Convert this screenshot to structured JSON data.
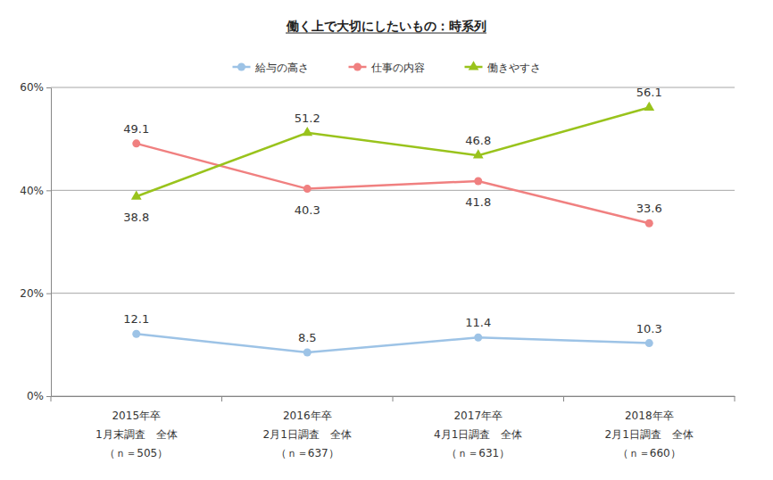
{
  "chart_data": {
    "type": "line",
    "title": "働く上で大切にしたいもの：時系列",
    "categories": [
      "2015年卒\n1月末調査　全体\n（ｎ＝505）",
      "2016年卒\n2月1日調査　全体\n（ｎ＝637）",
      "2017年卒\n4月1日調査　全体\n（ｎ＝631）",
      "2018年卒\n2月1日調査　全体\n（ｎ＝660）"
    ],
    "series": [
      {
        "name": "給与の高さ",
        "color": "#9dc3e6",
        "marker": "circle",
        "values": [
          12.1,
          8.5,
          11.4,
          10.3
        ]
      },
      {
        "name": "仕事の内容",
        "color": "#f08080",
        "marker": "circle",
        "values": [
          49.1,
          40.3,
          41.8,
          33.6
        ]
      },
      {
        "name": "働きやすさ",
        "color": "#99c31c",
        "marker": "triangle",
        "values": [
          38.8,
          51.2,
          46.8,
          56.1
        ]
      }
    ],
    "ylim": [
      0,
      60
    ],
    "yticks": [
      {
        "value": 0,
        "label": "0%"
      },
      {
        "value": 20,
        "label": "20%"
      },
      {
        "value": 40,
        "label": "40%"
      },
      {
        "value": 60,
        "label": "60%"
      }
    ],
    "grid": true,
    "legend": "top",
    "data_labels": true
  }
}
